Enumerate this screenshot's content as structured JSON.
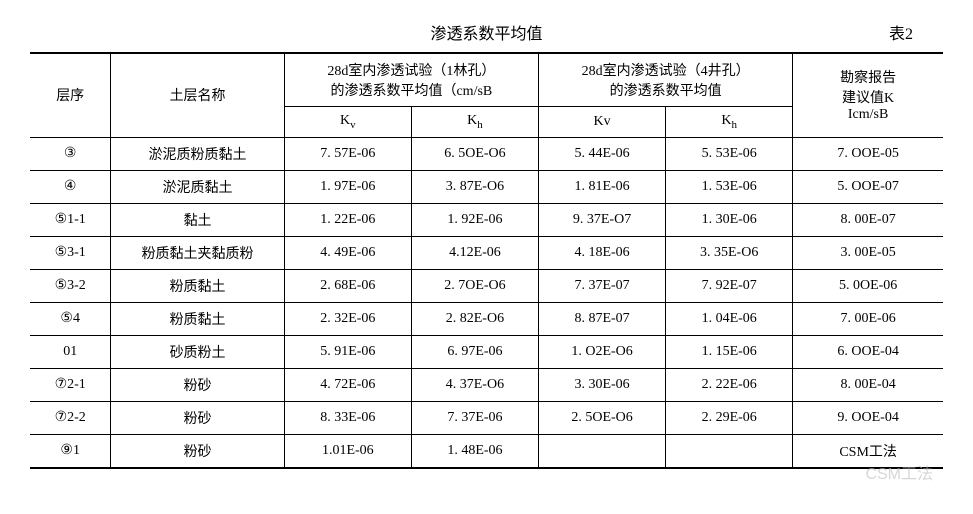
{
  "title": "渗透系数平均值",
  "table_label": "表2",
  "header": {
    "seq": "层序",
    "name": "土层名称",
    "group1_line1": "28d室内渗透试验（1林孔）",
    "group1_line2": "的渗透系数平均值（cm/sB",
    "group2_line1": "28d室内渗透试验（4井孔）",
    "group2_line2": "的渗透系数平均值",
    "last_line1": "勘察报告",
    "last_line2": "建议值K",
    "last_line3": "Icm/sB",
    "kv1": "K",
    "kv1_sub": "v",
    "kh1": "K",
    "kh1_sub": "h",
    "kv2": "Kv",
    "kh2": "K",
    "kh2_sub": "h"
  },
  "rows": [
    {
      "seq": "③",
      "name": "淤泥质粉质黏土",
      "kv1": "7. 57E-06",
      "kh1": "6. 5OE-O6",
      "kv2": "5. 44E-06",
      "kh2": "5. 53E-06",
      "k": "7. OOE-05"
    },
    {
      "seq": "④",
      "name": "淤泥质黏土",
      "kv1": "1. 97E-06",
      "kh1": "3. 87E-O6",
      "kv2": "1. 81E-06",
      "kh2": "1. 53E-06",
      "k": "5. OOE-07"
    },
    {
      "seq": "⑤1-1",
      "name": "黏土",
      "kv1": "1. 22E-06",
      "kh1": "1. 92E-06",
      "kv2": "9. 37E-O7",
      "kh2": "1. 30E-06",
      "k": "8. 00E-07"
    },
    {
      "seq": "⑤3-1",
      "name": "粉质黏土夹黏质粉",
      "kv1": "4. 49E-06",
      "kh1": "4.12E-06",
      "kv2": "4. 18E-06",
      "kh2": "3. 35E-O6",
      "k": "3. 00E-05"
    },
    {
      "seq": "⑤3-2",
      "name": "粉质黏土",
      "kv1": "2. 68E-06",
      "kh1": "2. 7OE-O6",
      "kv2": "7. 37E-07",
      "kh2": "7. 92E-07",
      "k": "5. 0OE-06"
    },
    {
      "seq": "⑤4",
      "name": "粉质黏土",
      "kv1": "2. 32E-06",
      "kh1": "2. 82E-O6",
      "kv2": "8. 87E-07",
      "kh2": "1. 04E-06",
      "k": "7. 00E-06"
    },
    {
      "seq": "01",
      "name": "砂质粉土",
      "kv1": "5. 91E-06",
      "kh1": "6. 97E-06",
      "kv2": "1. O2E-O6",
      "kh2": "1. 15E-06",
      "k": "6. OOE-04"
    },
    {
      "seq": "⑦2-1",
      "name": "粉砂",
      "kv1": "4. 72E-06",
      "kh1": "4. 37E-O6",
      "kv2": "3. 30E-06",
      "kh2": "2. 22E-06",
      "k": "8. 00E-04"
    },
    {
      "seq": "⑦2-2",
      "name": "粉砂",
      "kv1": "8. 33E-06",
      "kh1": "7. 37E-06",
      "kv2": "2. 5OE-O6",
      "kh2": "2. 29E-06",
      "k": "9. OOE-04"
    },
    {
      "seq": "⑨1",
      "name": "粉砂",
      "kv1": "1.01E-06",
      "kh1": "1. 48E-06",
      "kv2": "",
      "kh2": "",
      "k": "CSM工法"
    }
  ],
  "watermark": "CSM工法"
}
